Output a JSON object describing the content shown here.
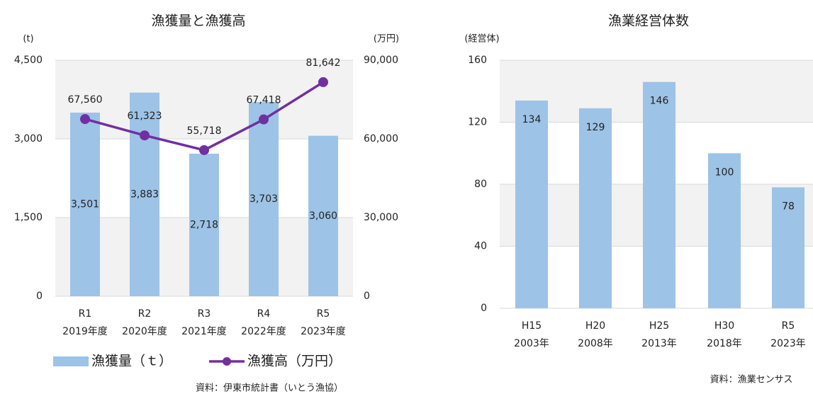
{
  "chart_data": [
    {
      "type": "bar",
      "title": "漁獲量と漁獲高",
      "y_label": "(t)",
      "y2_label": "(万円)",
      "categories": [
        "R1",
        "R2",
        "R3",
        "R4",
        "R5"
      ],
      "category_sublabels": [
        "2019年度",
        "2020年度",
        "2021年度",
        "2022年度",
        "2023年度"
      ],
      "series": [
        {
          "name": "漁獲量（ｔ）",
          "type": "bar",
          "color": "#9dc3e6",
          "values": [
            3501,
            3883,
            2718,
            3703,
            3060
          ],
          "value_labels": [
            "3,501",
            "3,883",
            "2,718",
            "3,703",
            "3,060"
          ]
        },
        {
          "name": "漁獲高（万円）",
          "type": "line",
          "axis": "y2",
          "color": "#7030a0",
          "values": [
            67560,
            61323,
            55718,
            67418,
            81642
          ],
          "value_labels": [
            "67,560",
            "61,323",
            "55,718",
            "67,418",
            "81,642"
          ]
        }
      ],
      "ylim": [
        0,
        4500
      ],
      "yticks": [
        0,
        {
          "value": 1500,
          "label": "1,500"
        },
        {
          "value": 3000,
          "label": "3,000"
        },
        {
          "value": 4500,
          "label": "4,500"
        }
      ],
      "y2lim": [
        0,
        90000
      ],
      "y2ticks": [
        0,
        {
          "value": 30000,
          "label": "30,000"
        },
        {
          "value": 60000,
          "label": "60,000"
        },
        {
          "value": 90000,
          "label": "90,000"
        }
      ],
      "legend": "bottom",
      "source": "資料：伊東市統計書（いとう漁協）"
    },
    {
      "type": "bar",
      "title": "漁業経営体数",
      "y_label": "(経営体)",
      "categories": [
        "H15",
        "H20",
        "H25",
        "H30",
        "R5"
      ],
      "category_sublabels": [
        "2003年",
        "2008年",
        "2013年",
        "2018年",
        "2023年"
      ],
      "series": [
        {
          "type": "bar",
          "color": "#9dc3e6",
          "values": [
            134,
            129,
            146,
            100,
            78
          ]
        }
      ],
      "ylim": [
        0,
        160
      ],
      "yticks": [
        0,
        40,
        80,
        120,
        160
      ],
      "source": "資料：漁業センサス"
    }
  ]
}
